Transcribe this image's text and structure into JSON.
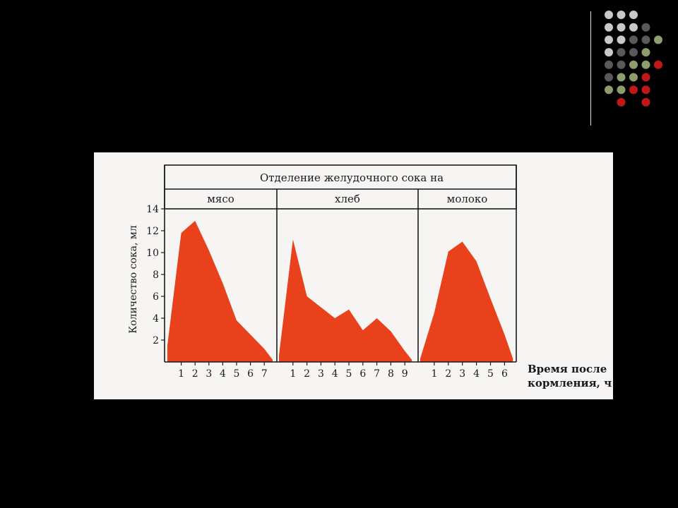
{
  "colors": {
    "background": "#000000",
    "figure_bg": "#f7f5f3",
    "fill": "#e8411c",
    "frame": "#1a1a1a",
    "dot_light": "#c8c8c8",
    "dot_dark": "#595959",
    "dot_green": "#8c9e6e",
    "dot_red": "#c01818"
  },
  "decoration": {
    "dot_grid": [
      [
        "light",
        "light",
        "light"
      ],
      [
        "light",
        "light",
        "light",
        "dark"
      ],
      [
        "light",
        "light",
        "dark",
        "dark",
        "green"
      ],
      [
        "light",
        "dark",
        "dark",
        "green"
      ],
      [
        "dark",
        "dark",
        "green",
        "green",
        "red"
      ],
      [
        "dark",
        "green",
        "green",
        "red"
      ],
      [
        "green",
        "green",
        "red",
        "red"
      ],
      [
        "",
        "red",
        "",
        "red"
      ]
    ]
  },
  "chart_data": {
    "type": "area",
    "title": "Отделение желудочного сока на",
    "ylabel": "Количество сока, мл",
    "xlabel_line1": "Время после",
    "xlabel_line2": "кормления, ч",
    "ylim": [
      0,
      14
    ],
    "yticks": [
      "2",
      "4",
      "6",
      "8",
      "10",
      "12",
      "14"
    ],
    "grid": false,
    "panels": [
      {
        "name": "мясо",
        "xticks": [
          "1",
          "2",
          "3",
          "4",
          "5",
          "6",
          "7"
        ],
        "x": [
          0,
          1,
          2,
          3,
          4,
          5,
          6,
          7,
          7.6
        ],
        "values": [
          1.5,
          11.8,
          12.9,
          10.2,
          7.2,
          3.8,
          2.5,
          1.2,
          0.2
        ]
      },
      {
        "name": "хлеб",
        "xticks": [
          "1",
          "2",
          "3",
          "4",
          "5",
          "6",
          "7",
          "8",
          "9"
        ],
        "x": [
          0,
          1,
          2,
          3,
          4,
          5,
          6,
          7,
          8,
          9,
          9.5
        ],
        "values": [
          0.6,
          11.2,
          6.0,
          5.0,
          4.0,
          4.8,
          2.9,
          4.0,
          2.8,
          1.0,
          0.2
        ]
      },
      {
        "name": "молоко",
        "xticks": [
          "1",
          "2",
          "3",
          "4",
          "5",
          "6"
        ],
        "x": [
          0,
          1,
          2,
          3,
          4,
          5,
          6,
          6.6
        ],
        "values": [
          0.3,
          4.5,
          10.1,
          11.0,
          9.2,
          5.8,
          2.5,
          0.3
        ]
      }
    ]
  }
}
